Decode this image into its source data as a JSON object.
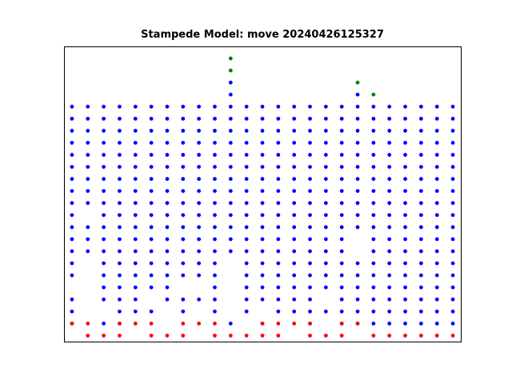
{
  "chart_data": {
    "type": "scatter",
    "title": "Stampede Model: move 20240426125327",
    "xlabel": "",
    "ylabel": "",
    "axes_visible": false,
    "grid": false,
    "legend": "none",
    "xlim": [
      -0.5,
      24.5
    ],
    "ylim": [
      -0.5,
      24.0
    ],
    "colors": {
      "blue": "#0000ff",
      "red": "#ff0000",
      "green": "#008000"
    },
    "series": [
      {
        "color": "blue",
        "rows": {
          "1": [
            0,
            2,
            3,
            10,
            12,
            15,
            17,
            18,
            19,
            20,
            21,
            22,
            23,
            24
          ],
          "2": [
            0,
            3,
            4,
            5,
            7,
            9,
            11,
            13,
            14,
            15,
            16,
            17,
            18,
            19,
            20,
            21,
            22,
            23,
            24
          ],
          "3": [
            0,
            2,
            3,
            4,
            6,
            7,
            8,
            9,
            11,
            12,
            13,
            14,
            15,
            17,
            18,
            19,
            20,
            21,
            22,
            23,
            24
          ],
          "4": [
            2,
            3,
            4,
            5,
            6,
            9,
            11,
            12,
            13,
            14,
            15,
            16,
            17,
            18,
            19,
            20,
            21,
            22,
            23,
            24
          ],
          "5": [
            0,
            2,
            3,
            4,
            5,
            6,
            7,
            8,
            9,
            11,
            12,
            13,
            14,
            15,
            16,
            17,
            18,
            19,
            20,
            21,
            22,
            23,
            24
          ],
          "6": [
            0,
            2,
            3,
            4,
            5,
            6,
            7,
            8,
            9,
            11,
            12,
            13,
            14,
            15,
            16,
            17,
            18,
            19,
            20,
            21,
            22,
            23,
            24
          ],
          "7": [
            0,
            1,
            2,
            3,
            4,
            5,
            6,
            7,
            8,
            9,
            10,
            11,
            12,
            13,
            14,
            15,
            16,
            17,
            19,
            20,
            21,
            22,
            23,
            24
          ],
          "8": [
            0,
            1,
            2,
            3,
            4,
            5,
            6,
            7,
            8,
            9,
            10,
            11,
            12,
            13,
            14,
            15,
            16,
            17,
            19,
            20,
            21,
            22,
            23,
            24
          ],
          "9": [
            0,
            1,
            2,
            3,
            4,
            5,
            6,
            7,
            8,
            9,
            10,
            11,
            12,
            13,
            14,
            15,
            16,
            17,
            18,
            19,
            20,
            21,
            22,
            23,
            24
          ],
          "10": [
            0,
            2,
            3,
            4,
            5,
            6,
            7,
            8,
            9,
            10,
            11,
            12,
            13,
            14,
            15,
            16,
            17,
            18,
            19,
            20,
            21,
            22,
            23,
            24
          ],
          "11": [
            0,
            1,
            2,
            3,
            4,
            5,
            6,
            7,
            8,
            9,
            10,
            11,
            12,
            13,
            14,
            15,
            16,
            17,
            18,
            19,
            20,
            21,
            22,
            23,
            24
          ],
          "12": [
            0,
            1,
            2,
            3,
            4,
            5,
            6,
            7,
            8,
            9,
            10,
            11,
            12,
            13,
            14,
            15,
            16,
            17,
            18,
            19,
            20,
            21,
            22,
            23,
            24
          ],
          "13": [
            0,
            1,
            2,
            3,
            4,
            5,
            6,
            7,
            8,
            9,
            10,
            11,
            12,
            13,
            14,
            15,
            16,
            17,
            18,
            19,
            20,
            21,
            22,
            23,
            24
          ],
          "14": [
            0,
            1,
            2,
            3,
            4,
            5,
            6,
            7,
            8,
            9,
            10,
            11,
            12,
            13,
            14,
            15,
            16,
            17,
            18,
            19,
            20,
            21,
            22,
            23,
            24
          ],
          "15": [
            0,
            1,
            2,
            3,
            4,
            5,
            6,
            7,
            8,
            9,
            10,
            11,
            12,
            13,
            14,
            15,
            16,
            17,
            18,
            19,
            20,
            21,
            22,
            23,
            24
          ],
          "16": [
            0,
            1,
            2,
            3,
            4,
            5,
            6,
            7,
            8,
            9,
            10,
            11,
            12,
            13,
            14,
            15,
            16,
            17,
            18,
            19,
            20,
            21,
            22,
            23,
            24
          ],
          "17": [
            0,
            1,
            2,
            3,
            4,
            5,
            6,
            7,
            8,
            9,
            10,
            11,
            12,
            13,
            14,
            15,
            16,
            17,
            18,
            19,
            20,
            21,
            22,
            23,
            24
          ],
          "18": [
            0,
            1,
            2,
            3,
            4,
            5,
            6,
            7,
            8,
            9,
            10,
            11,
            12,
            13,
            14,
            15,
            16,
            17,
            18,
            19,
            20,
            21,
            22,
            23,
            24
          ],
          "19": [
            0,
            1,
            2,
            3,
            4,
            5,
            6,
            7,
            8,
            9,
            10,
            11,
            12,
            13,
            14,
            15,
            16,
            17,
            18,
            19,
            20,
            21,
            22,
            23,
            24
          ],
          "20": [
            10,
            18
          ],
          "21": [
            10
          ]
        }
      },
      {
        "color": "red",
        "points": [
          [
            0,
            1
          ],
          [
            1,
            1
          ],
          [
            3,
            1
          ],
          [
            4,
            1
          ],
          [
            5,
            1
          ],
          [
            7,
            1
          ],
          [
            8,
            1
          ],
          [
            9,
            1
          ],
          [
            12,
            1
          ],
          [
            13,
            1
          ],
          [
            14,
            1
          ],
          [
            15,
            1
          ],
          [
            17,
            1
          ],
          [
            18,
            1
          ],
          [
            1,
            0
          ],
          [
            2,
            0
          ],
          [
            3,
            0
          ],
          [
            5,
            0
          ],
          [
            6,
            0
          ],
          [
            7,
            0
          ],
          [
            9,
            0
          ],
          [
            10,
            0
          ],
          [
            11,
            0
          ],
          [
            12,
            0
          ],
          [
            13,
            0
          ],
          [
            15,
            0
          ],
          [
            16,
            0
          ],
          [
            17,
            0
          ],
          [
            19,
            0
          ],
          [
            20,
            0
          ],
          [
            21,
            0
          ],
          [
            22,
            0
          ],
          [
            23,
            0
          ],
          [
            24,
            0
          ]
        ]
      },
      {
        "color": "green",
        "points": [
          [
            10,
            23
          ],
          [
            10,
            22
          ],
          [
            18,
            21
          ],
          [
            19,
            20
          ]
        ]
      }
    ]
  }
}
